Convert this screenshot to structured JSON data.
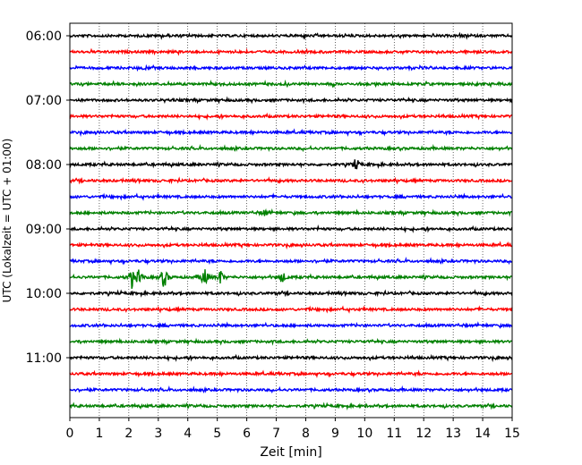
{
  "chart_data": {
    "type": "line",
    "title": "",
    "xlabel": "Zeit  [min]",
    "ylabel": "UTC (Lokalzeit = UTC + 01:00)",
    "xlim": [
      0,
      15
    ],
    "x_ticks": [
      "0",
      "1",
      "2",
      "3",
      "4",
      "5",
      "6",
      "7",
      "8",
      "9",
      "10",
      "11",
      "12",
      "13",
      "14",
      "15"
    ],
    "y_ticks": [
      "06:00",
      "07:00",
      "08:00",
      "09:00",
      "10:00",
      "11:00"
    ],
    "grid": "vertical dotted at each minute",
    "legend": "none",
    "trace_interval_minutes": 15,
    "colors_cycle": [
      "#000000",
      "#ff0000",
      "#0000ff",
      "#008000"
    ],
    "series": [
      {
        "start": "06:00",
        "color": "#000000",
        "events": []
      },
      {
        "start": "06:15",
        "color": "#ff0000",
        "events": []
      },
      {
        "start": "06:30",
        "color": "#0000ff",
        "events": []
      },
      {
        "start": "06:45",
        "color": "#008000",
        "events": []
      },
      {
        "start": "07:00",
        "color": "#000000",
        "events": []
      },
      {
        "start": "07:15",
        "color": "#ff0000",
        "events": []
      },
      {
        "start": "07:30",
        "color": "#0000ff",
        "events": []
      },
      {
        "start": "07:45",
        "color": "#008000",
        "events": []
      },
      {
        "start": "08:00",
        "color": "#000000",
        "events": [
          {
            "t": 9.7,
            "amp": 7
          }
        ]
      },
      {
        "start": "08:15",
        "color": "#ff0000",
        "events": []
      },
      {
        "start": "08:30",
        "color": "#0000ff",
        "events": []
      },
      {
        "start": "08:45",
        "color": "#008000",
        "events": [
          {
            "t": 6.6,
            "amp": 4
          }
        ]
      },
      {
        "start": "09:00",
        "color": "#000000",
        "events": []
      },
      {
        "start": "09:15",
        "color": "#ff0000",
        "events": []
      },
      {
        "start": "09:30",
        "color": "#0000ff",
        "events": []
      },
      {
        "start": "09:45",
        "color": "#008000",
        "events": [
          {
            "t": 2.1,
            "amp": 12
          },
          {
            "t": 2.35,
            "amp": 9
          },
          {
            "t": 3.2,
            "amp": 14
          },
          {
            "t": 4.55,
            "amp": 15
          },
          {
            "t": 5.1,
            "amp": 9
          },
          {
            "t": 7.2,
            "amp": 8
          }
        ]
      },
      {
        "start": "10:00",
        "color": "#000000",
        "events": []
      },
      {
        "start": "10:15",
        "color": "#ff0000",
        "events": []
      },
      {
        "start": "10:30",
        "color": "#0000ff",
        "events": []
      },
      {
        "start": "10:45",
        "color": "#008000",
        "events": []
      },
      {
        "start": "11:00",
        "color": "#000000",
        "events": []
      },
      {
        "start": "11:15",
        "color": "#ff0000",
        "events": []
      },
      {
        "start": "11:30",
        "color": "#0000ff",
        "events": []
      },
      {
        "start": "11:45",
        "color": "#008000",
        "events": []
      }
    ]
  }
}
